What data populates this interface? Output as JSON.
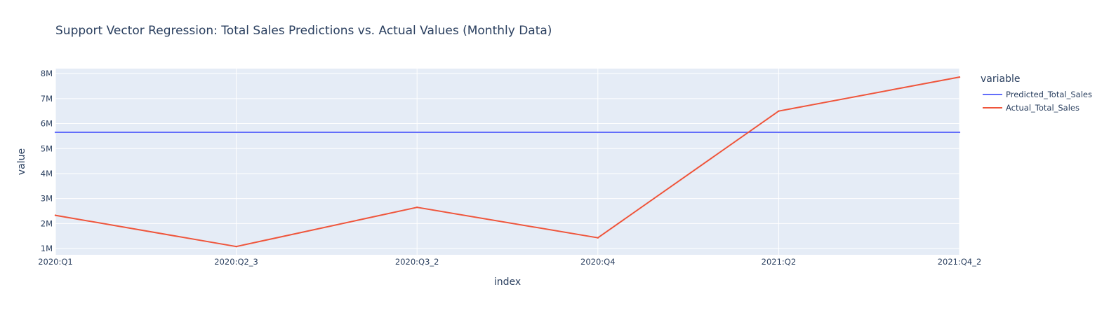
{
  "chart_data": {
    "type": "line",
    "title": "Support Vector Regression: Total Sales Predictions vs. Actual Values (Monthly Data)",
    "xlabel": "index",
    "ylabel": "value",
    "categories": [
      "2020:Q1",
      "2020:Q2_3",
      "2020:Q3_2",
      "2020:Q4",
      "2021:Q2",
      "2021:Q4_2"
    ],
    "ylim": [
      750000,
      8200000
    ],
    "yticks": [
      1000000,
      2000000,
      3000000,
      4000000,
      5000000,
      6000000,
      7000000,
      8000000
    ],
    "ytick_labels": [
      "1M",
      "2M",
      "3M",
      "4M",
      "5M",
      "6M",
      "7M",
      "8M"
    ],
    "grid": true,
    "legend": {
      "title": "variable",
      "position": "right"
    },
    "series": [
      {
        "name": "Predicted_Total_Sales",
        "color": "#636efa",
        "values": [
          5650000,
          5650000,
          5650000,
          5650000,
          5650000,
          5650000
        ]
      },
      {
        "name": "Actual_Total_Sales",
        "color": "#ef553b",
        "values": [
          2330000,
          1080000,
          2650000,
          1430000,
          6500000,
          7860000
        ]
      }
    ],
    "colors": {
      "plot_bg": "#e5ecf6",
      "grid": "#ffffff",
      "text": "#2a3f5f"
    }
  }
}
